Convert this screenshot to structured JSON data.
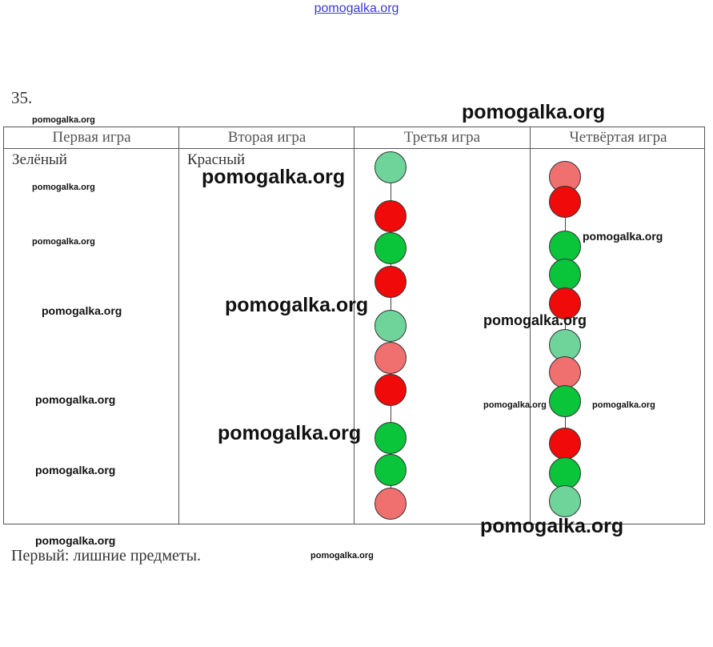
{
  "site_header": "pomogalka.org",
  "task_number": "35.",
  "table": {
    "headers": [
      "Первая игра",
      "Вторая игра",
      "Третья игра",
      "Четвёртая игра"
    ],
    "cells": [
      "Зелёный",
      "Красный"
    ],
    "game3_beads": [
      "green",
      "red",
      "green",
      "red",
      "green",
      "red",
      "red",
      "green",
      "green",
      "red"
    ],
    "game4_beads": [
      "red",
      "red",
      "green",
      "green",
      "red",
      "green",
      "red",
      "green",
      "red",
      "green",
      "green"
    ]
  },
  "footnote": "Первый: лишние предметы.",
  "watermark": "pomogalka.org",
  "colors": {
    "red": "#f00a0a",
    "green": "#0ac43a",
    "header_link": "#3b3bd6"
  }
}
